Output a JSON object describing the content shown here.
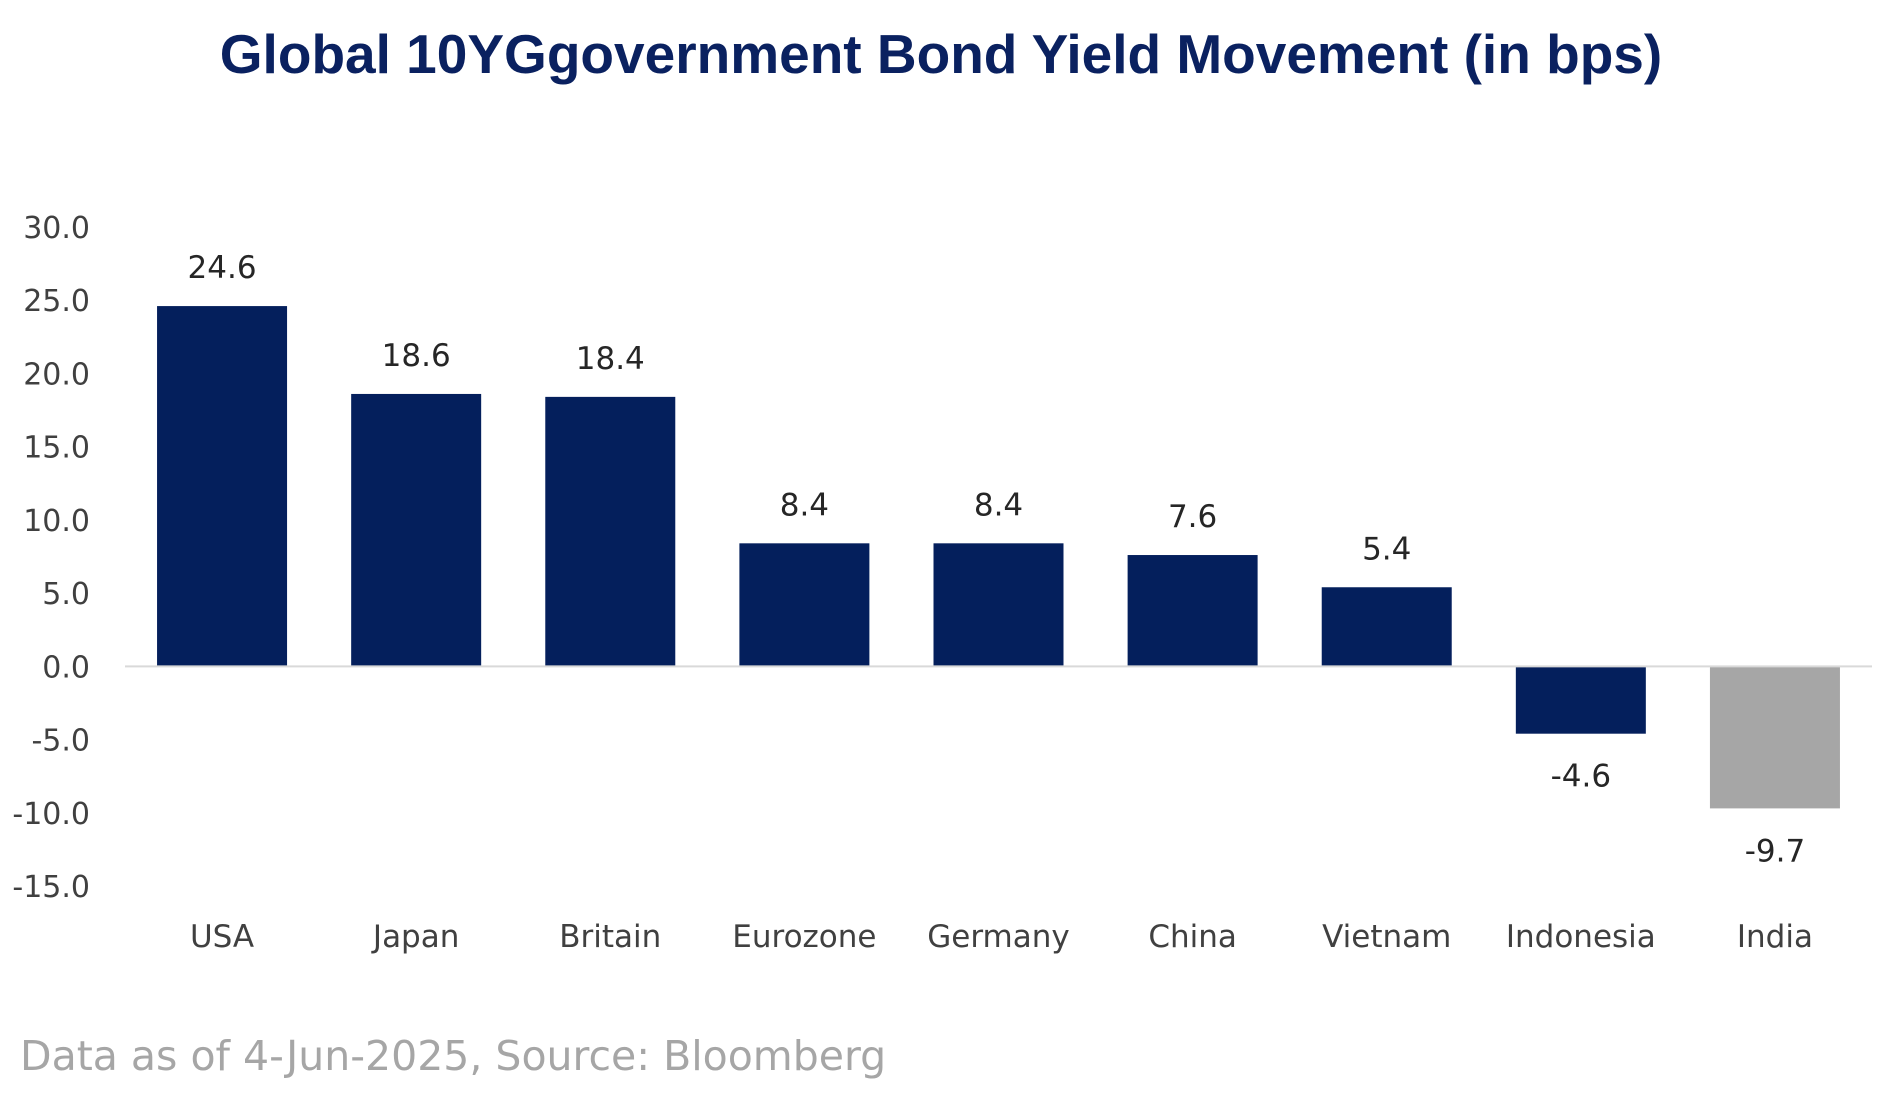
{
  "chart_data": {
    "type": "bar",
    "title": "Global 10YGgovernment Bond Yield Movement (in bps)",
    "xlabel": "",
    "ylabel": "",
    "categories": [
      "USA",
      "Japan",
      "Britain",
      "Eurozone",
      "Germany",
      "China",
      "Vietnam",
      "Indonesia",
      "India"
    ],
    "values": [
      24.6,
      18.6,
      18.4,
      8.4,
      8.4,
      7.6,
      5.4,
      -4.6,
      -9.7
    ],
    "data_labels": [
      "24.6",
      "18.6",
      "18.4",
      "8.4",
      "8.4",
      "7.6",
      "5.4",
      "-4.6",
      "-9.7"
    ],
    "bar_colors": [
      "#041f5c",
      "#041f5c",
      "#041f5c",
      "#041f5c",
      "#041f5c",
      "#041f5c",
      "#041f5c",
      "#041f5c",
      "#a6a6a6"
    ],
    "ylim": [
      -15,
      30
    ],
    "yticks": [
      30,
      25,
      20,
      15,
      10,
      5,
      0,
      -5,
      -10,
      -15
    ],
    "ytick_labels": [
      "30.0",
      "25.0",
      "20.0",
      "15.0",
      "10.0",
      "5.0",
      "0.0",
      "-5.0",
      "-10.0",
      "-15.0"
    ],
    "grid": false,
    "legend": "none",
    "colors": {
      "title": "#0a2160",
      "primary_bar": "#041f5c",
      "highlight_bar": "#a6a6a6",
      "axis_line": "#d9d9d9",
      "tick_text": "#404040",
      "note_text": "#a6a6a6"
    }
  },
  "footer": {
    "note": "Data as of 4-Jun-2025, Source: Bloomberg"
  }
}
